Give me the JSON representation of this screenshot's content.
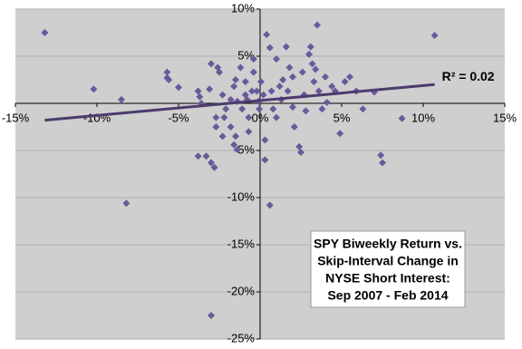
{
  "chart_data": {
    "type": "scatter",
    "x": [
      -13.2,
      -10.2,
      -8.5,
      -8.2,
      -5.7,
      -5.7,
      -5.6,
      -5.0,
      -3.8,
      -3.7,
      -3.8,
      -3.6,
      -3.3,
      -3.0,
      -2.8,
      -3.0,
      -2.6,
      -2.5,
      -3.1,
      -2.3,
      -2.2,
      -2.7,
      -2.7,
      -2.3,
      -1.8,
      -1.6,
      -1.4,
      -1.5,
      -2.1,
      -1.8,
      -1.6,
      -1.5,
      -1.2,
      -0.9,
      -0.8,
      -1.1,
      -0.7,
      -0.7,
      -0.5,
      -0.4,
      -0.4,
      -0.2,
      -0.1,
      -0.05,
      0.05,
      0.2,
      0.3,
      0.3,
      0.4,
      0.6,
      0.6,
      0.7,
      0.8,
      1.0,
      1.0,
      1.2,
      1.3,
      1.4,
      1.6,
      1.7,
      1.8,
      2.0,
      2.0,
      2.1,
      2.4,
      2.5,
      2.6,
      2.7,
      2.8,
      3.0,
      3.1,
      3.2,
      3.3,
      3.4,
      3.5,
      3.6,
      3.8,
      4.0,
      4.1,
      4.4,
      4.6,
      4.9,
      5.2,
      5.5,
      5.9,
      6.3,
      7.0,
      7.4,
      7.5,
      8.7,
      10.7,
      -3.0,
      -0.9,
      -1.4
    ],
    "values": [
      7.5,
      1.5,
      0.4,
      -10.6,
      3.3,
      2.7,
      2.5,
      1.7,
      1.3,
      0.7,
      -5.6,
      0,
      -5.6,
      -6.3,
      -6.8,
      4.2,
      3.8,
      3.3,
      1.5,
      0.9,
      -1.5,
      -1.5,
      -2.5,
      -3.5,
      -2.5,
      -4.4,
      -4.9,
      -3.5,
      -0.6,
      0.4,
      1.8,
      2.5,
      3.8,
      2.3,
      0.4,
      -0.6,
      -1.5,
      -3.0,
      1.3,
      4.7,
      3.3,
      1.3,
      0.2,
      -0.6,
      2.3,
      0.9,
      -3.9,
      -6.0,
      7.3,
      5.9,
      -10.8,
      1.3,
      -0.6,
      4.7,
      -1.5,
      1.8,
      0.4,
      2.5,
      6.0,
      1.3,
      3.8,
      2.8,
      -0.4,
      -2.5,
      -4.6,
      -5.2,
      3.3,
      0.9,
      -0.8,
      5.2,
      6.0,
      4.2,
      2.3,
      3.6,
      8.3,
      1.3,
      -0.6,
      2.8,
      0.1,
      1.8,
      1.3,
      -3.2,
      2.3,
      2.8,
      1.3,
      -0.6,
      1.2,
      -5.5,
      -6.3,
      -1.6,
      7.2,
      -22.5,
      0.9,
      0.2
    ],
    "color": "#6a5a9a",
    "xlim": [
      -15,
      15
    ],
    "ylim": [
      -25,
      10
    ],
    "xticks": [
      {
        "value": -15,
        "label": "-15%"
      },
      {
        "value": -10,
        "label": "-10%"
      },
      {
        "value": -5,
        "label": "-5%"
      },
      {
        "value": 0,
        "label": "0%"
      },
      {
        "value": 5,
        "label": "5%"
      },
      {
        "value": 10,
        "label": "10%"
      },
      {
        "value": 15,
        "label": "15%"
      }
    ],
    "yticks": [
      {
        "value": -25,
        "label": "-25%"
      },
      {
        "value": -20,
        "label": "-20%"
      },
      {
        "value": -15,
        "label": "-15%"
      },
      {
        "value": -10,
        "label": "-10%"
      },
      {
        "value": -5,
        "label": "-5%"
      },
      {
        "value": 5,
        "label": "5%"
      },
      {
        "value": 10,
        "label": "10%"
      }
    ],
    "grid": true,
    "trendline": {
      "slope": 0.158,
      "intercept": 0.3,
      "color": "#4b3b6e",
      "label": "R² = 0.02"
    },
    "annotation": [
      "SPY Biweekly Return vs.",
      "Skip-Interval Change in",
      "NYSE Short Interest:",
      "Sep 2007 - Feb 2014"
    ]
  }
}
